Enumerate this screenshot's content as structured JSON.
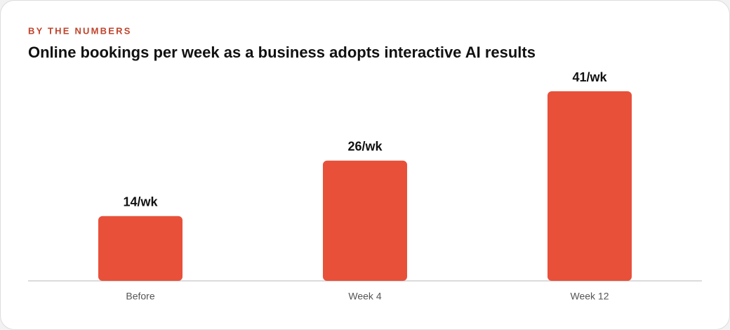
{
  "chart_data": {
    "type": "bar",
    "kicker": "BY THE NUMBERS",
    "title": "Online bookings per week as a business adopts interactive AI results",
    "categories": [
      "Before",
      "Week 4",
      "Week 12"
    ],
    "values": [
      14,
      26,
      41
    ],
    "value_labels": [
      "14/wk",
      "26/wk",
      "41/wk"
    ],
    "color": "#e8503a"
  }
}
